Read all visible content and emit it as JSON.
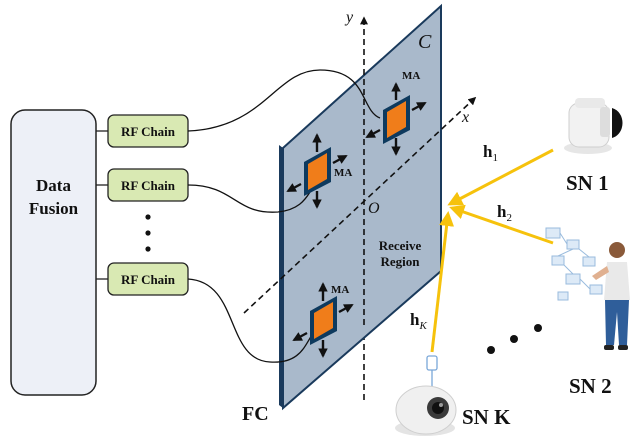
{
  "fusion": {
    "label_line1": "Data",
    "label_line2": "Fusion"
  },
  "rf_chains": [
    "RF Chain",
    "RF Chain",
    "RF Chain"
  ],
  "panel": {
    "corner_label": "C",
    "region_line1": "Receive",
    "region_line2": "Region",
    "origin": "O",
    "axis_x": "x",
    "axis_y": "y",
    "fc_label": "FC"
  },
  "ma_label": "MA",
  "channels": [
    {
      "symbol": "h",
      "subscript": "1"
    },
    {
      "symbol": "h",
      "subscript": "2"
    },
    {
      "symbol": "h",
      "subscript": "K"
    }
  ],
  "nodes": [
    "SN 1",
    "SN 2",
    "SN K"
  ],
  "colors": {
    "panel_fill": "#a9b9cb",
    "panel_edge": "#1a3a5c",
    "ma_fill": "#f07d1a",
    "ma_frame": "#0e3a5e",
    "rf_fill": "#d9e9b3",
    "fusion_fill": "#edf0f7",
    "signal": "#f6c20c"
  }
}
